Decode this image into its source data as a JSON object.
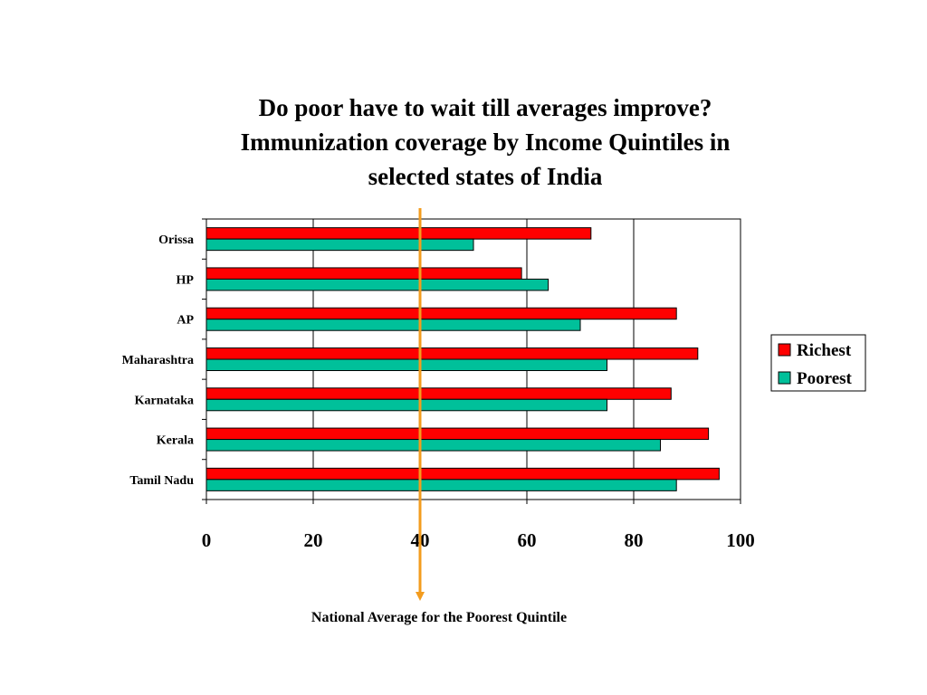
{
  "title_lines": [
    "Do poor have to wait till averages improve?",
    "Immunization coverage by Income Quintiles in",
    "selected states of India"
  ],
  "footnote": "National Average for the Poorest Quintile",
  "colors": {
    "richest": "#ff0000",
    "poorest": "#00c09a",
    "reference_line": "#f39c1e"
  },
  "chart_data": {
    "type": "bar",
    "orientation": "horizontal",
    "categories": [
      "Orissa",
      "HP",
      "AP",
      "Maharashtra",
      "Karnataka",
      "Kerala",
      "Tamil Nadu"
    ],
    "series": [
      {
        "name": "Richest",
        "values": [
          72,
          59,
          88,
          92,
          87,
          94,
          96
        ]
      },
      {
        "name": "Poorest",
        "values": [
          50,
          64,
          70,
          75,
          75,
          85,
          88
        ]
      }
    ],
    "xlim": [
      0,
      100
    ],
    "x_ticks": [
      0,
      20,
      40,
      60,
      80,
      100
    ],
    "grid": "vertical",
    "legend_position": "right",
    "reference_line": {
      "value": 40
    }
  }
}
